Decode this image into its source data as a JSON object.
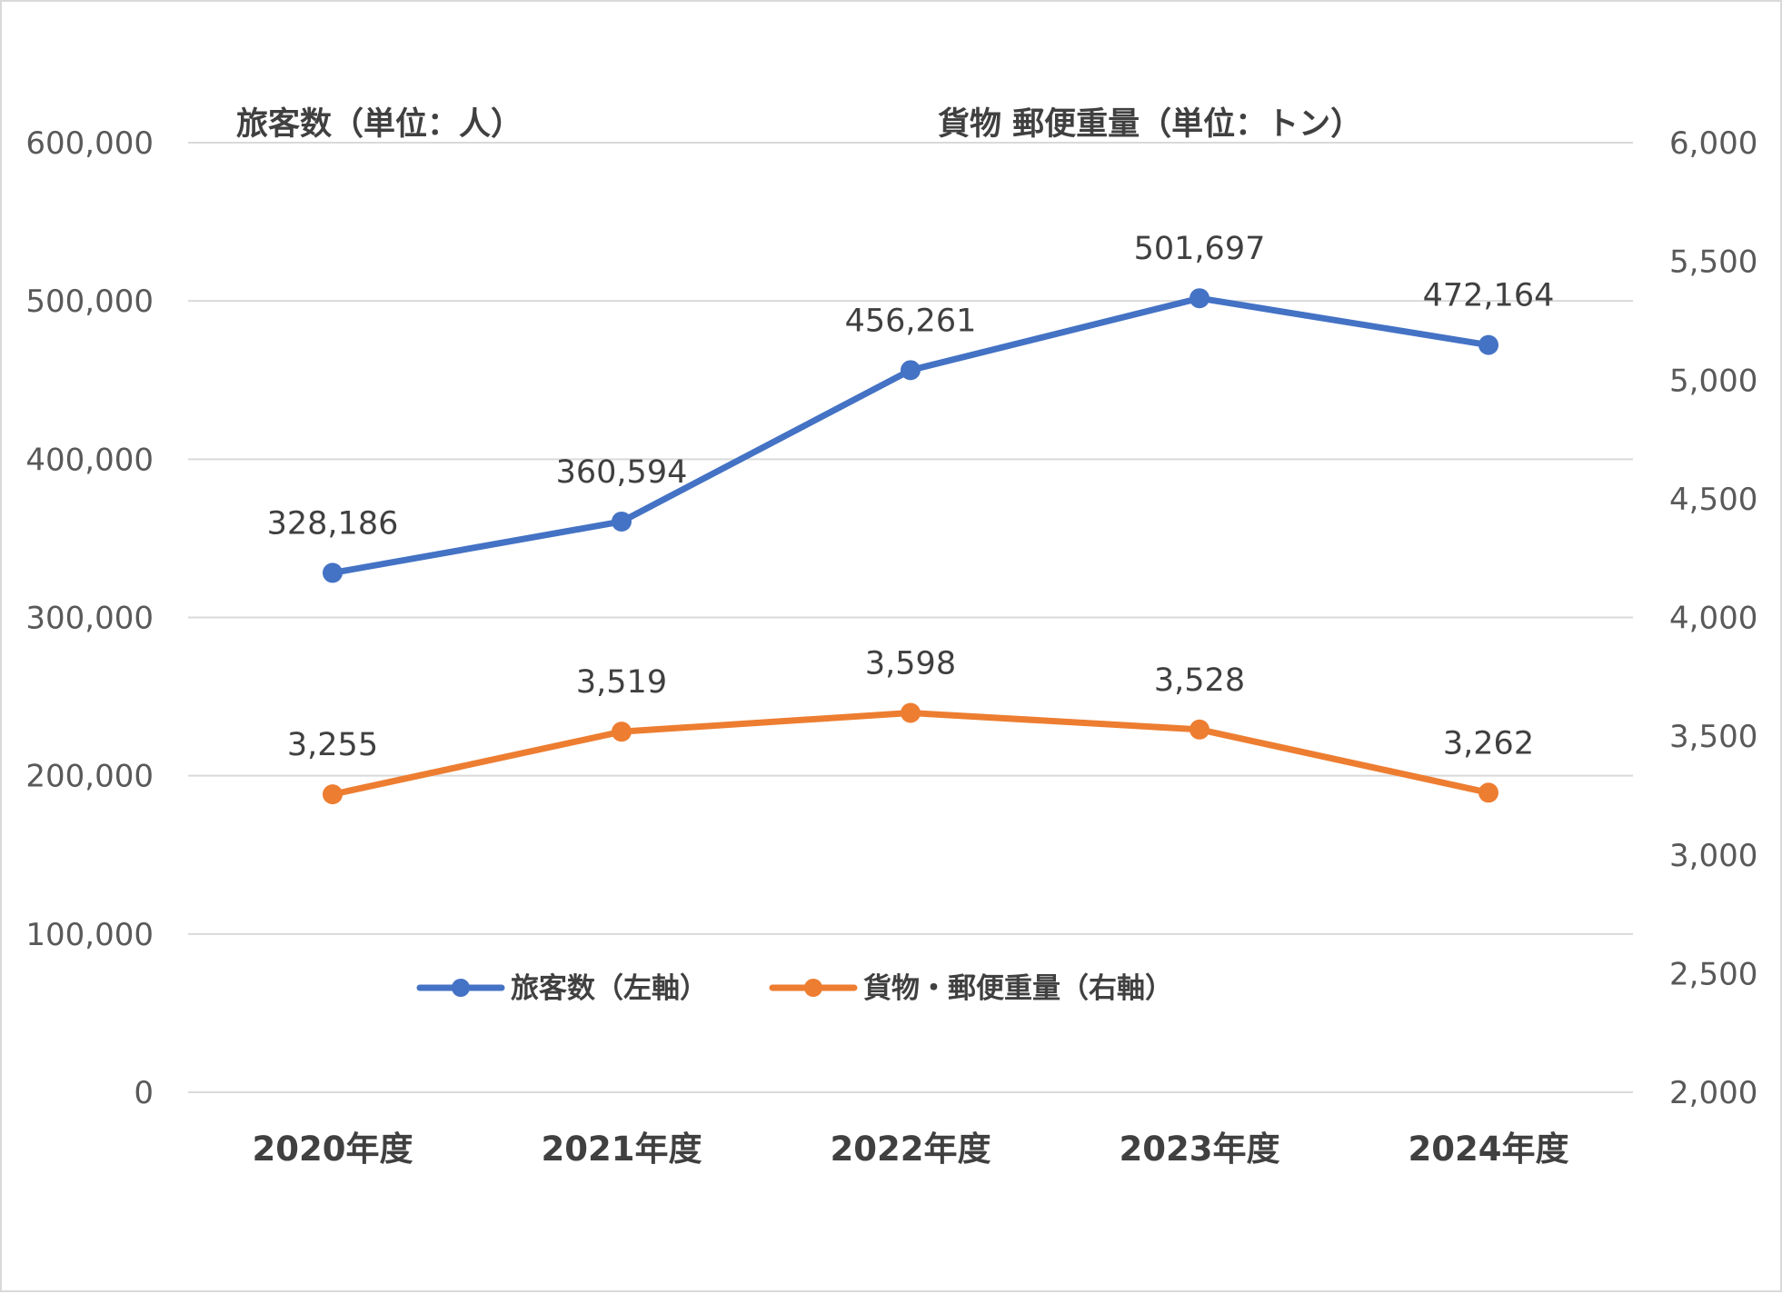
{
  "chart_data": {
    "type": "line",
    "categories": [
      "2020年度",
      "2021年度",
      "2022年度",
      "2023年度",
      "2024年度"
    ],
    "series": [
      {
        "name": "旅客数（左軸）",
        "axis": "left",
        "color": "#4472c4",
        "values": [
          328186,
          360594,
          456261,
          501697,
          472164
        ],
        "labels": [
          "328,186",
          "360,594",
          "456,261",
          "501,697",
          "472,164"
        ]
      },
      {
        "name": "貨物・郵便重量（右軸）",
        "axis": "right",
        "color": "#ed7d31",
        "values": [
          3255,
          3519,
          3598,
          3528,
          3262
        ],
        "labels": [
          "3,255",
          "3,519",
          "3,598",
          "3,528",
          "3,262"
        ]
      }
    ],
    "left_axis": {
      "title": "旅客数（単位：人）",
      "ylim": [
        0,
        600000
      ],
      "ticks": [
        0,
        100000,
        200000,
        300000,
        400000,
        500000,
        600000
      ],
      "tick_labels": [
        "0",
        "100,000",
        "200,000",
        "300,000",
        "400,000",
        "500,000",
        "600,000"
      ]
    },
    "right_axis": {
      "title": "貨物 郵便重量（単位：トン）",
      "ylim": [
        2000,
        6000
      ],
      "ticks": [
        2000,
        2500,
        3000,
        3500,
        4000,
        4500,
        5000,
        5500,
        6000
      ],
      "tick_labels": [
        "2,000",
        "2,500",
        "3,000",
        "3,500",
        "4,000",
        "4,500",
        "5,000",
        "5,500",
        "6,000"
      ]
    },
    "grid": true,
    "legend_position": "bottom-center"
  }
}
